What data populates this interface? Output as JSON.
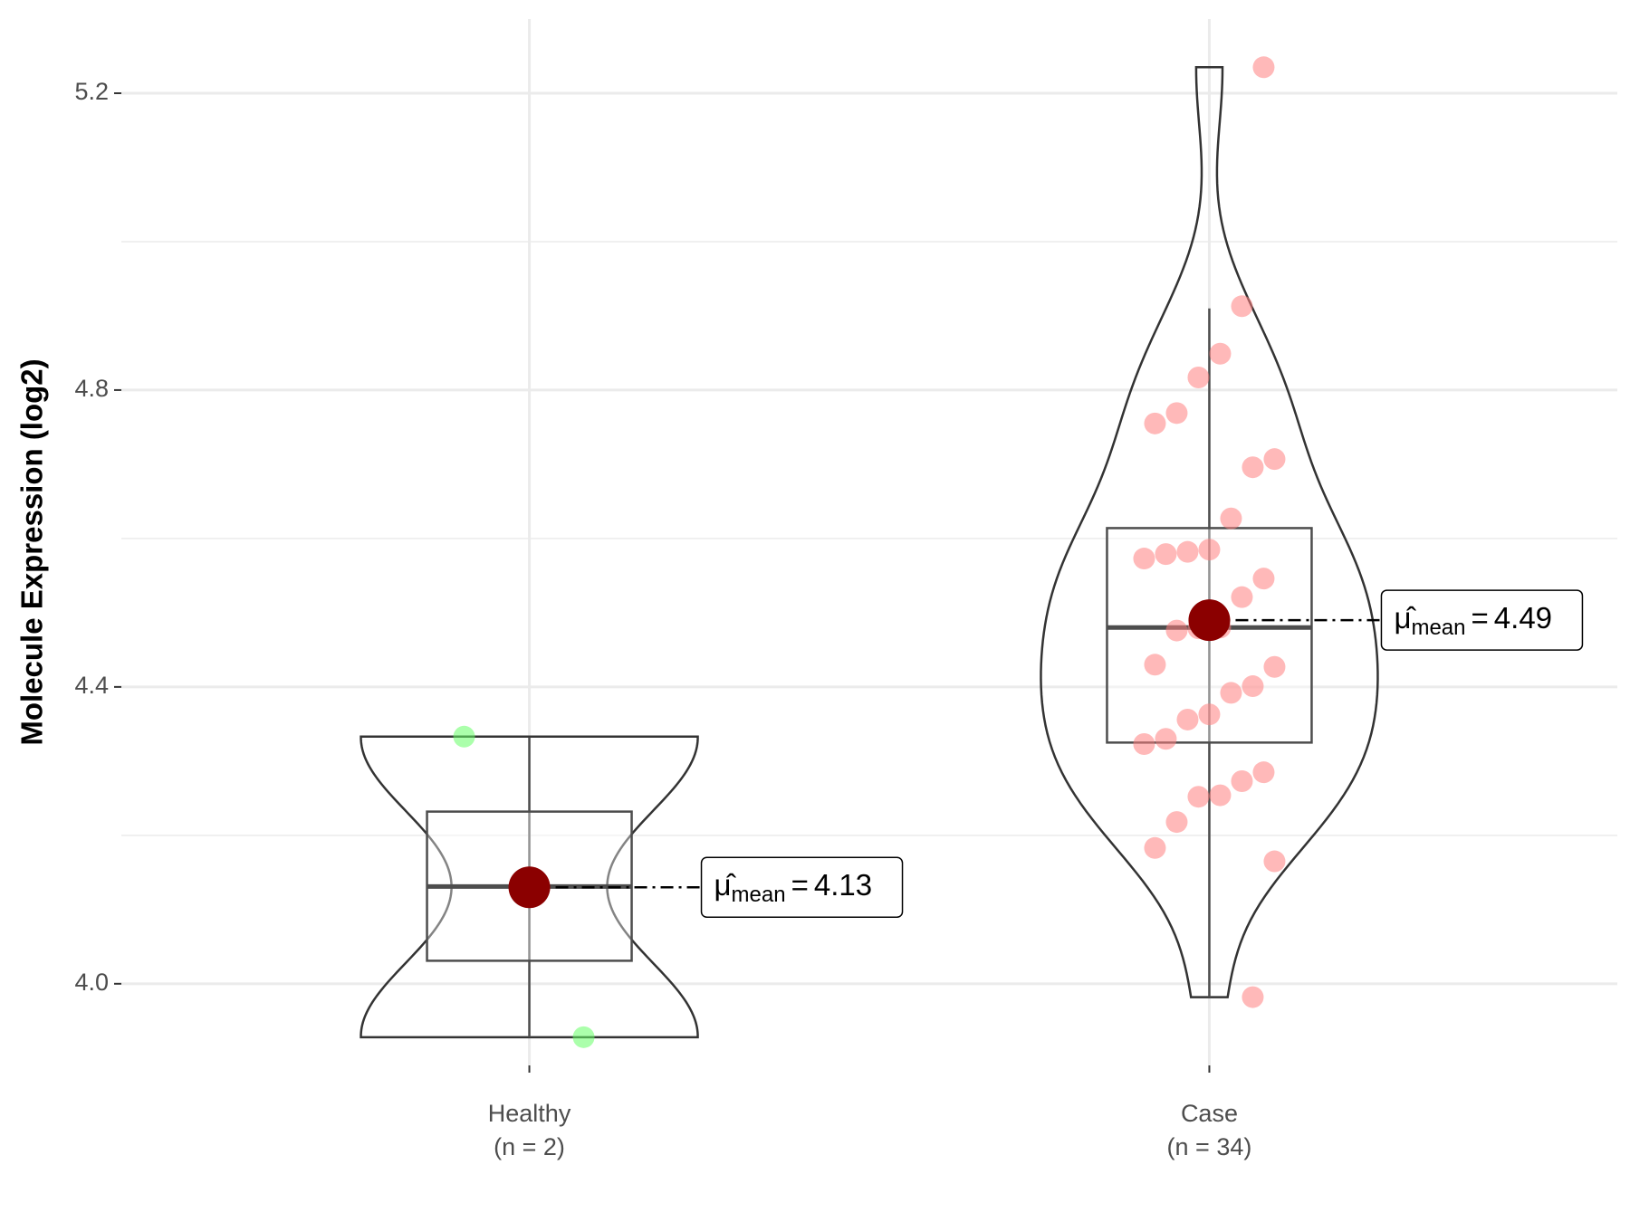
{
  "chart_data": {
    "type": "violin",
    "y_label": "Molecule Expression (log2)",
    "ylim": [
      3.89,
      5.3
    ],
    "yticks": [
      {
        "value": 4,
        "label": "4.0"
      },
      4.4,
      4.8,
      5.2
    ],
    "minor_yticks": [
      4.2,
      4.6,
      5.0
    ],
    "grid": true,
    "mean_label": {
      "symbol": "μ̂",
      "subscript": "mean",
      "equals": "="
    },
    "mean_color": "#8b0000",
    "groups": [
      {
        "category": "Healthy",
        "n_label": "(n = 2)",
        "color": "#66ff66",
        "values": [
          4.333,
          3.928
        ],
        "box": {
          "lower": 3.928,
          "q1": 4.031,
          "median": 4.131,
          "q3": 4.232,
          "upper": 4.332
        },
        "mean": 4.13
      },
      {
        "category": "Case",
        "n_label": "(n = 34)",
        "color": "#ff7f7f",
        "values": [
          5.235,
          4.913,
          4.849,
          4.817,
          4.769,
          4.755,
          4.707,
          4.696,
          4.627,
          4.585,
          4.582,
          4.579,
          4.573,
          4.546,
          4.521,
          4.48,
          4.479,
          4.476,
          4.43,
          4.427,
          4.401,
          4.392,
          4.363,
          4.356,
          4.33,
          4.323,
          4.285,
          4.273,
          4.254,
          4.252,
          4.218,
          4.183,
          4.165,
          3.982
        ],
        "box": {
          "lower": 3.982,
          "q1": 4.325,
          "median": 4.48,
          "q3": 4.614,
          "upper": 4.91
        },
        "mean": 4.49
      }
    ]
  }
}
